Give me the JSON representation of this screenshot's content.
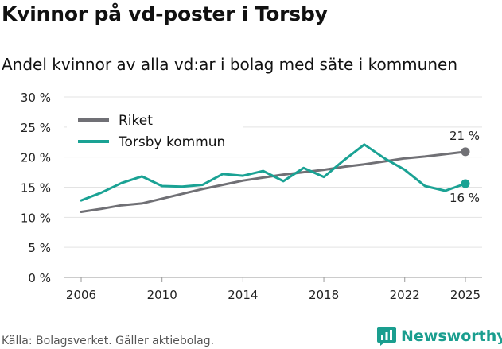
{
  "chart_data": {
    "type": "line",
    "title": "Kvinnor på vd-poster i Torsby",
    "subtitle": "Andel kvinnor av alla vd:ar i bolag med säte i kommunen",
    "ylim": [
      0,
      30
    ],
    "xlim": [
      2006,
      2025
    ],
    "y_ticks": [
      0,
      5,
      10,
      15,
      20,
      25,
      30
    ],
    "y_tick_labels": [
      "0 %",
      "5 %",
      "10 %",
      "15 %",
      "20 %",
      "25 %",
      "30 %"
    ],
    "x_ticks": [
      2006,
      2010,
      2014,
      2018,
      2022,
      2025
    ],
    "x_tick_labels": [
      "2006",
      "2010",
      "2014",
      "2018",
      "2022",
      "2025"
    ],
    "legend_position": "top-left",
    "series": [
      {
        "name": "Riket",
        "color": "#707075",
        "x": [
          2006,
          2007,
          2008,
          2009,
          2010,
          2011,
          2012,
          2013,
          2014,
          2015,
          2016,
          2017,
          2018,
          2019,
          2020,
          2021,
          2022,
          2023,
          2024,
          2025
        ],
        "values": [
          10.9,
          11.4,
          12.0,
          12.3,
          13.1,
          13.9,
          14.7,
          15.4,
          16.1,
          16.6,
          17.1,
          17.5,
          17.9,
          18.4,
          18.8,
          19.3,
          19.8,
          20.1,
          20.5,
          20.9
        ],
        "end_label": "21 %"
      },
      {
        "name": "Torsby kommun",
        "color": "#1aa294",
        "x": [
          2006,
          2007,
          2008,
          2009,
          2010,
          2011,
          2012,
          2013,
          2014,
          2015,
          2016,
          2017,
          2018,
          2019,
          2020,
          2021,
          2022,
          2023,
          2024,
          2025
        ],
        "values": [
          12.8,
          14.1,
          15.7,
          16.8,
          15.2,
          15.1,
          15.4,
          17.2,
          16.9,
          17.7,
          16.0,
          18.2,
          16.7,
          19.5,
          22.1,
          19.8,
          17.9,
          15.2,
          14.4,
          15.6
        ],
        "end_label": "16 %"
      }
    ]
  },
  "footer": {
    "source": "Källa: Bolagsverket. Gäller aktiebolag.",
    "brand": "Newsworthy",
    "brand_color": "#1a9e8f"
  }
}
